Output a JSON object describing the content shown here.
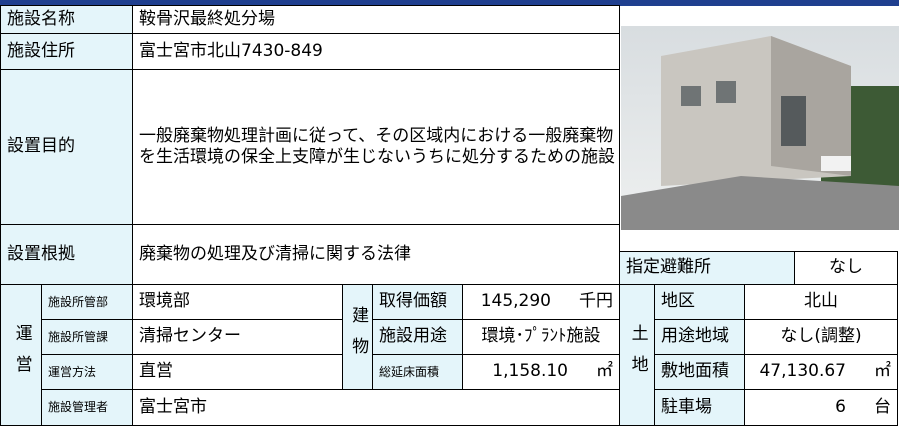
{
  "facility": {
    "rows": [
      {
        "label": "施設名称",
        "value": "鞍骨沢最終処分場"
      },
      {
        "label": "施設住所",
        "value": "富士宮市北山7430-849"
      },
      {
        "label": "設置目的",
        "value": "一般廃棄物処理計画に従って、その区域内における一般廃棄物を生活環境の保全上支障が生じないうちに処分するための施設"
      },
      {
        "label": "設置根拠",
        "value": "廃棄物の処理及び清掃に関する法律"
      }
    ]
  },
  "evacuation": {
    "label": "指定避難所",
    "value": "なし"
  },
  "operation": {
    "group": "運営",
    "rows": [
      {
        "label": "施設所管部",
        "value": "環境部"
      },
      {
        "label": "施設所管課",
        "value": "清掃センター"
      },
      {
        "label": "運営方法",
        "value": "直営"
      },
      {
        "label": "施設管理者",
        "value": "富士宮市"
      }
    ]
  },
  "building": {
    "group": "建物",
    "rows": [
      {
        "label": "取得価額",
        "value": "145,290",
        "unit": "千円"
      },
      {
        "label": "施設用途",
        "value": "環境･ﾌﾟﾗﾝﾄ施設"
      },
      {
        "label": "総延床面積",
        "value": "1,158.10",
        "unit": "㎡"
      }
    ]
  },
  "land": {
    "group": "土地",
    "rows": [
      {
        "label": "地区",
        "value": "北山"
      },
      {
        "label": "用途地域",
        "value": "なし(調整)"
      },
      {
        "label": "敷地面積",
        "value": "47,130.67",
        "unit": "㎡"
      },
      {
        "label": "駐車場",
        "value": "6",
        "unit": "台"
      }
    ]
  }
}
